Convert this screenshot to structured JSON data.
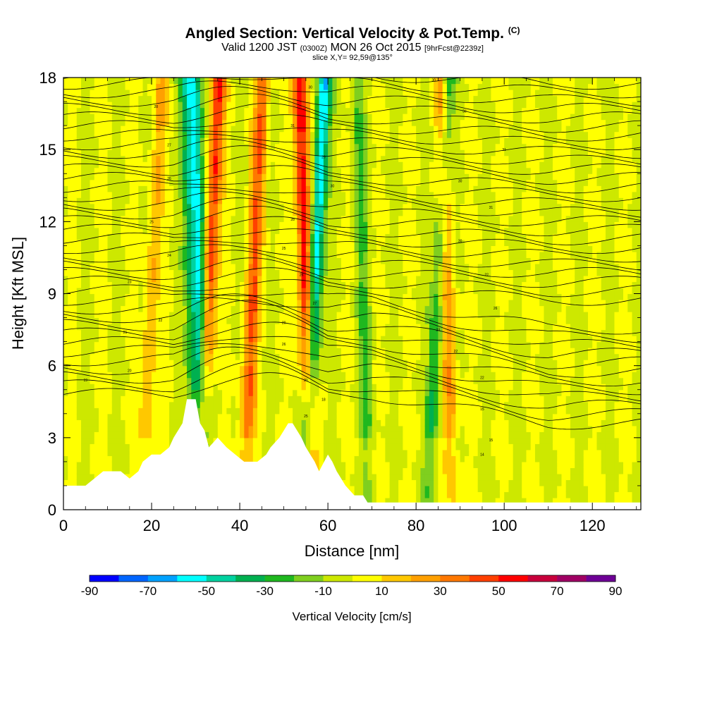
{
  "title": {
    "main": "Angled Section: Vertical Velocity & Pot.Temp.",
    "main_suffix": "(C)",
    "sub_prefix": "Valid 1200 JST",
    "sub_small1": "(0300Z)",
    "sub_mid": "MON 26 Oct 2015",
    "sub_small2": "[9hrFcst@2239z]",
    "slice": "slice X,Y= 92,59@135°"
  },
  "colors": {
    "fill_levels": [
      "#0000ff",
      "#0066ff",
      "#00a2ff",
      "#00ffff",
      "#00d2a0",
      "#00b050",
      "#1fb81f",
      "#7fcf1f",
      "#cde800",
      "#ffff00",
      "#ffc800",
      "#ffa000",
      "#ff7800",
      "#ff4000",
      "#ff0000",
      "#c8003c",
      "#a00064",
      "#6e0096"
    ],
    "terrain": "#ffffff",
    "contour": "#000000"
  },
  "chart_data": {
    "type": "heatmap",
    "xlabel": "Distance [nm]",
    "ylabel": "Height [Kft MSL]",
    "xlim": [
      0,
      131
    ],
    "ylim": [
      0,
      18
    ],
    "x_ticks": [
      0,
      20,
      40,
      60,
      80,
      100,
      120
    ],
    "y_ticks": [
      0,
      3,
      6,
      9,
      12,
      15,
      18
    ],
    "colorbar": {
      "label": "Vertical Velocity [cm/s]",
      "levels": [
        -90,
        -80,
        -70,
        -60,
        -50,
        -40,
        -30,
        -20,
        -10,
        0,
        10,
        20,
        30,
        40,
        50,
        60,
        70,
        80,
        90
      ],
      "tick_labels": [
        -90,
        -70,
        -50,
        -30,
        -10,
        10,
        30,
        50,
        70,
        90
      ]
    },
    "updraft_columns_nm": [
      {
        "x": 33,
        "w_cm_s": 50
      },
      {
        "x": 55,
        "w_cm_s": 60
      },
      {
        "x": 43,
        "w_cm_s": 40
      },
      {
        "x": 87,
        "w_cm_s": 30
      },
      {
        "x": 20,
        "w_cm_s": 20
      }
    ],
    "downdraft_columns_nm": [
      {
        "x": 31,
        "w_cm_s": -50
      },
      {
        "x": 57,
        "w_cm_s": -60
      },
      {
        "x": 29,
        "w_cm_s": -30
      },
      {
        "x": 85,
        "w_cm_s": -30
      },
      {
        "x": 68,
        "w_cm_s": -20
      }
    ],
    "terrain_profile": [
      [
        0,
        1.0
      ],
      [
        5,
        1.0
      ],
      [
        7,
        1.3
      ],
      [
        9,
        1.6
      ],
      [
        13,
        1.6
      ],
      [
        15,
        1.3
      ],
      [
        17,
        1.6
      ],
      [
        18,
        2.0
      ],
      [
        20,
        2.3
      ],
      [
        22,
        2.3
      ],
      [
        24,
        2.6
      ],
      [
        25,
        3.0
      ],
      [
        27,
        3.6
      ],
      [
        28,
        4.6
      ],
      [
        30,
        4.6
      ],
      [
        31,
        3.6
      ],
      [
        32,
        3.3
      ],
      [
        33,
        2.6
      ],
      [
        35,
        3.0
      ],
      [
        37,
        2.6
      ],
      [
        39,
        2.3
      ],
      [
        41,
        2.0
      ],
      [
        44,
        2.0
      ],
      [
        46,
        2.3
      ],
      [
        47,
        2.6
      ],
      [
        49,
        3.0
      ],
      [
        50,
        3.3
      ],
      [
        51,
        3.6
      ],
      [
        52,
        3.6
      ],
      [
        53,
        3.3
      ],
      [
        54,
        3.0
      ],
      [
        55,
        2.6
      ],
      [
        56,
        2.3
      ],
      [
        57,
        2.0
      ],
      [
        58,
        1.6
      ],
      [
        60,
        2.3
      ],
      [
        61,
        2.0
      ],
      [
        62,
        1.6
      ],
      [
        63,
        1.3
      ],
      [
        64,
        1.0
      ],
      [
        66,
        0.6
      ],
      [
        68,
        0.6
      ],
      [
        69,
        0.3
      ],
      [
        131,
        0.3
      ]
    ],
    "isentrope_labels": [
      {
        "text": "19",
        "x": 5,
        "y": 5.4
      },
      {
        "text": "20",
        "x": 15,
        "y": 5.8
      },
      {
        "text": "21",
        "x": 14,
        "y": 7.4
      },
      {
        "text": "22",
        "x": 22,
        "y": 7.9
      },
      {
        "text": "23",
        "x": 15,
        "y": 9.5
      },
      {
        "text": "24",
        "x": 24,
        "y": 10.6
      },
      {
        "text": "25",
        "x": 20,
        "y": 12.0
      },
      {
        "text": "26",
        "x": 24,
        "y": 13.8
      },
      {
        "text": "27",
        "x": 24,
        "y": 15.2
      },
      {
        "text": "28",
        "x": 21,
        "y": 16.8
      },
      {
        "text": "31",
        "x": 52,
        "y": 16.0
      },
      {
        "text": "30",
        "x": 56,
        "y": 17.6
      },
      {
        "text": "29",
        "x": 59,
        "y": 14.7
      },
      {
        "text": "30",
        "x": 61,
        "y": 13.5
      },
      {
        "text": "28",
        "x": 52,
        "y": 12.1
      },
      {
        "text": "25",
        "x": 50,
        "y": 10.9
      },
      {
        "text": "26",
        "x": 54,
        "y": 9.8
      },
      {
        "text": "27",
        "x": 57,
        "y": 8.6
      },
      {
        "text": "20",
        "x": 50,
        "y": 7.8
      },
      {
        "text": "26",
        "x": 50,
        "y": 6.9
      },
      {
        "text": "20",
        "x": 55,
        "y": 5.4
      },
      {
        "text": "25",
        "x": 55,
        "y": 3.9
      },
      {
        "text": "18",
        "x": 59,
        "y": 4.6
      },
      {
        "text": "30",
        "x": 84,
        "y": 17.9
      },
      {
        "text": "33",
        "x": 91,
        "y": 16.6
      },
      {
        "text": "31",
        "x": 100,
        "y": 15.0
      },
      {
        "text": "30",
        "x": 90,
        "y": 13.7
      },
      {
        "text": "31",
        "x": 97,
        "y": 12.6
      },
      {
        "text": "30",
        "x": 90,
        "y": 11.2
      },
      {
        "text": "22",
        "x": 96,
        "y": 9.8
      },
      {
        "text": "26",
        "x": 98,
        "y": 8.4
      },
      {
        "text": "23",
        "x": 85,
        "y": 7.5
      },
      {
        "text": "22",
        "x": 89,
        "y": 6.6
      },
      {
        "text": "22",
        "x": 95,
        "y": 5.5
      },
      {
        "text": "15",
        "x": 95,
        "y": 4.2
      },
      {
        "text": "15",
        "x": 97,
        "y": 2.9
      },
      {
        "text": "14",
        "x": 95,
        "y": 2.3
      }
    ]
  }
}
